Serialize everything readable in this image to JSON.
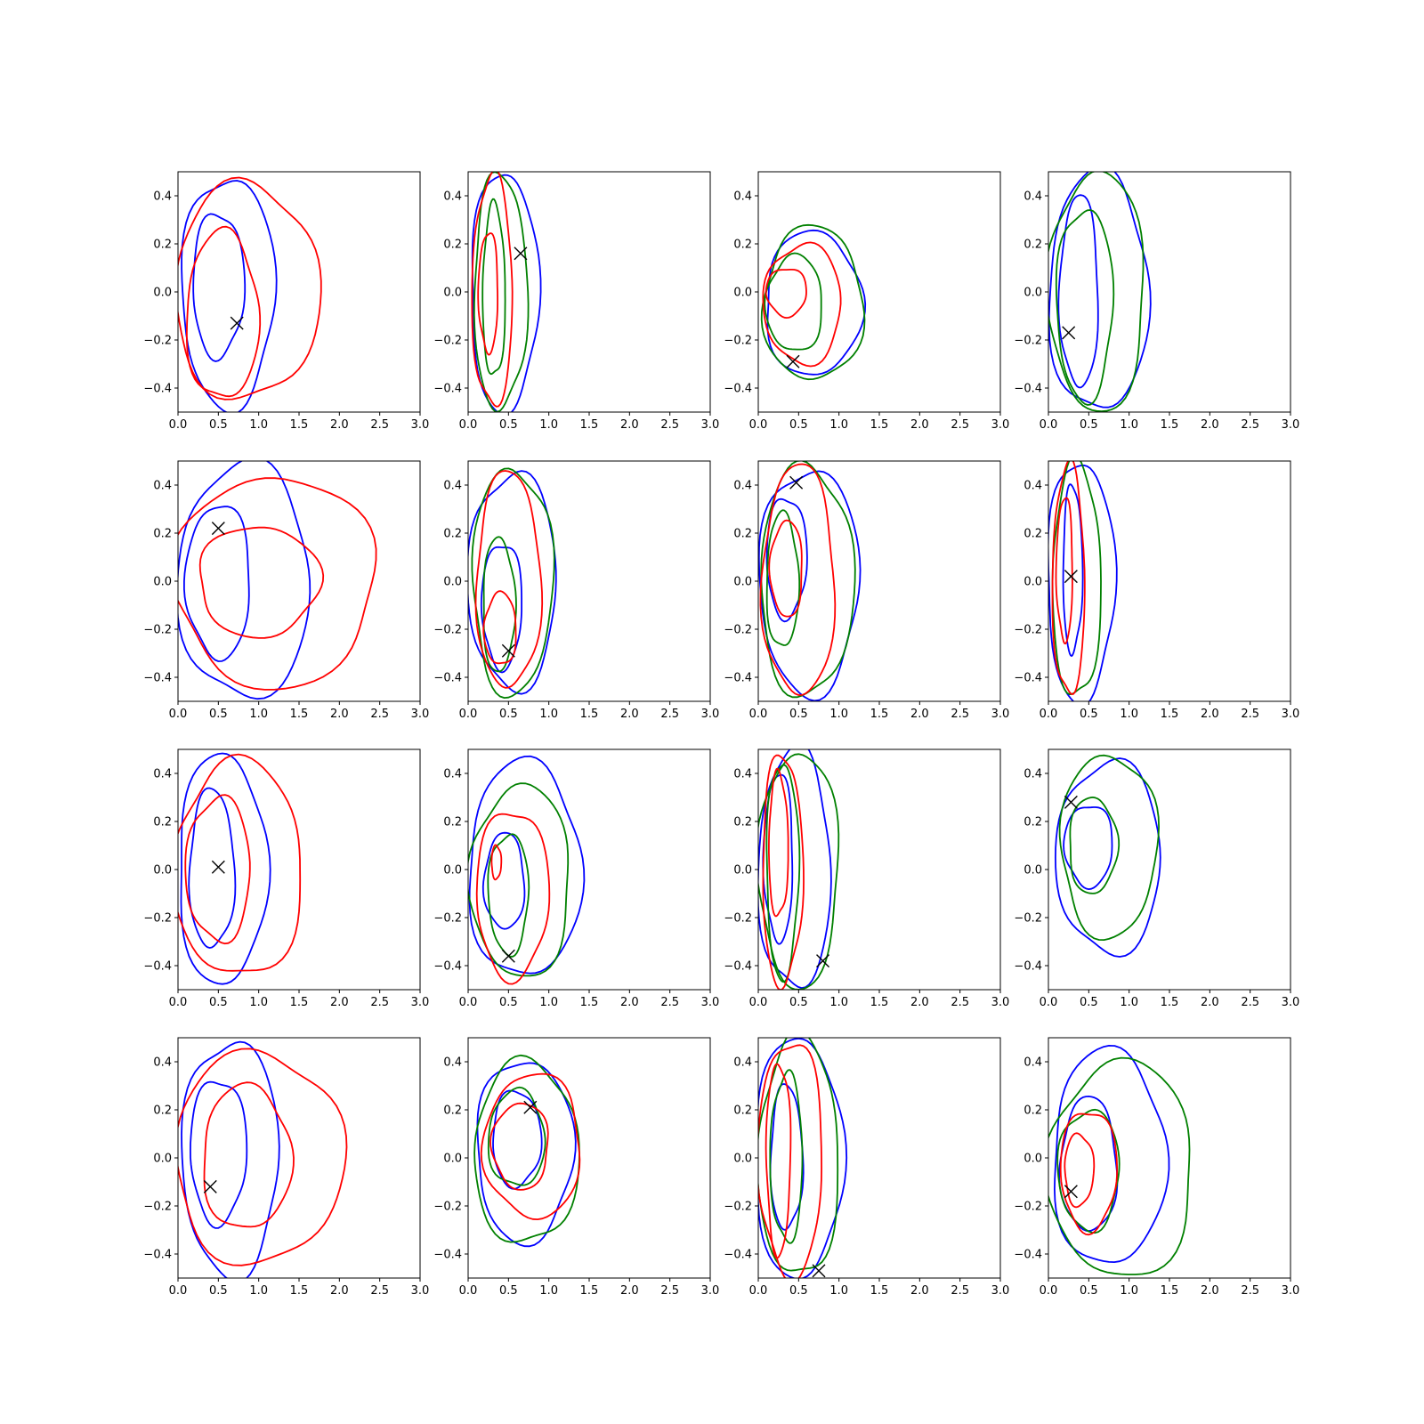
{
  "chart_data": {
    "type": "contour-grid",
    "rows": 4,
    "cols": 4,
    "xlim": [
      0.0,
      3.0
    ],
    "ylim": [
      -0.5,
      0.5
    ],
    "x_ticks": [
      "0.0",
      "0.5",
      "1.0",
      "1.5",
      "2.0",
      "2.5",
      "3.0"
    ],
    "y_ticks": [
      "−0.4",
      "−0.2",
      "0.0",
      "0.2",
      "0.4"
    ],
    "x_tick_values": [
      0,
      0.5,
      1.0,
      1.5,
      2.0,
      2.5,
      3.0
    ],
    "y_tick_values": [
      -0.4,
      -0.2,
      0.0,
      0.2,
      0.4
    ],
    "grid": false,
    "legend": "none",
    "colors": {
      "blue": "#0000ff",
      "red": "#ff0000",
      "green": "#008000",
      "marker": "#000000"
    },
    "panels": [
      {
        "marker": [
          0.73,
          -0.13
        ],
        "contours": [
          {
            "color": "blue",
            "cx": 0.62,
            "cy": 0.0,
            "rx": 0.58,
            "ry": 0.48
          },
          {
            "color": "blue",
            "cx": 0.5,
            "cy": 0.03,
            "rx": 0.32,
            "ry": 0.3
          },
          {
            "color": "red",
            "cx": 0.85,
            "cy": 0.0,
            "rx": 0.9,
            "ry": 0.45
          },
          {
            "color": "red",
            "cx": 0.55,
            "cy": -0.1,
            "rx": 0.45,
            "ry": 0.35
          }
        ]
      },
      {
        "marker": [
          0.65,
          0.16
        ],
        "contours": [
          {
            "color": "blue",
            "cx": 0.45,
            "cy": 0.0,
            "rx": 0.42,
            "ry": 0.5
          },
          {
            "color": "green",
            "cx": 0.4,
            "cy": 0.0,
            "rx": 0.33,
            "ry": 0.49
          },
          {
            "color": "green",
            "cx": 0.32,
            "cy": 0.0,
            "rx": 0.14,
            "ry": 0.36
          },
          {
            "color": "red",
            "cx": 0.3,
            "cy": 0.0,
            "rx": 0.25,
            "ry": 0.48
          },
          {
            "color": "red",
            "cx": 0.25,
            "cy": 0.0,
            "rx": 0.12,
            "ry": 0.25
          }
        ]
      },
      {
        "marker": [
          0.43,
          -0.29
        ],
        "contours": [
          {
            "color": "blue",
            "cx": 0.68,
            "cy": -0.05,
            "rx": 0.6,
            "ry": 0.3
          },
          {
            "color": "green",
            "cx": 0.68,
            "cy": -0.05,
            "rx": 0.62,
            "ry": 0.32
          },
          {
            "color": "green",
            "cx": 0.45,
            "cy": -0.05,
            "rx": 0.35,
            "ry": 0.2
          },
          {
            "color": "red",
            "cx": 0.55,
            "cy": -0.05,
            "rx": 0.48,
            "ry": 0.25
          },
          {
            "color": "red",
            "cx": 0.35,
            "cy": 0.0,
            "rx": 0.25,
            "ry": 0.1
          }
        ]
      },
      {
        "marker": [
          0.25,
          -0.17
        ],
        "contours": [
          {
            "color": "blue",
            "cx": 0.62,
            "cy": 0.0,
            "rx": 0.62,
            "ry": 0.5
          },
          {
            "color": "blue",
            "cx": 0.38,
            "cy": 0.0,
            "rx": 0.24,
            "ry": 0.4
          },
          {
            "color": "green",
            "cx": 0.6,
            "cy": 0.0,
            "rx": 0.6,
            "ry": 0.5
          },
          {
            "color": "green",
            "cx": 0.45,
            "cy": -0.05,
            "rx": 0.35,
            "ry": 0.4
          }
        ]
      },
      {
        "marker": [
          0.5,
          0.22
        ],
        "contours": [
          {
            "color": "blue",
            "cx": 0.82,
            "cy": 0.0,
            "rx": 0.82,
            "ry": 0.49
          },
          {
            "color": "blue",
            "cx": 0.5,
            "cy": 0.0,
            "rx": 0.4,
            "ry": 0.32
          },
          {
            "color": "red",
            "cx": 1.2,
            "cy": 0.0,
            "rx": 1.25,
            "ry": 0.44
          },
          {
            "color": "red",
            "cx": 1.0,
            "cy": 0.0,
            "rx": 0.75,
            "ry": 0.23
          }
        ]
      },
      {
        "marker": [
          0.5,
          -0.29
        ],
        "contours": [
          {
            "color": "blue",
            "cx": 0.55,
            "cy": 0.0,
            "rx": 0.55,
            "ry": 0.45
          },
          {
            "color": "blue",
            "cx": 0.42,
            "cy": -0.1,
            "rx": 0.25,
            "ry": 0.26
          },
          {
            "color": "green",
            "cx": 0.55,
            "cy": 0.0,
            "rx": 0.5,
            "ry": 0.47
          },
          {
            "color": "green",
            "cx": 0.38,
            "cy": -0.1,
            "rx": 0.2,
            "ry": 0.28
          },
          {
            "color": "red",
            "cx": 0.5,
            "cy": 0.0,
            "rx": 0.4,
            "ry": 0.45
          },
          {
            "color": "red",
            "cx": 0.4,
            "cy": -0.2,
            "rx": 0.2,
            "ry": 0.15
          }
        ]
      },
      {
        "marker": [
          0.47,
          0.41
        ],
        "contours": [
          {
            "color": "blue",
            "cx": 0.63,
            "cy": 0.0,
            "rx": 0.62,
            "ry": 0.47
          },
          {
            "color": "blue",
            "cx": 0.35,
            "cy": 0.1,
            "rx": 0.25,
            "ry": 0.25
          },
          {
            "color": "green",
            "cx": 0.6,
            "cy": 0.0,
            "rx": 0.58,
            "ry": 0.48
          },
          {
            "color": "green",
            "cx": 0.3,
            "cy": 0.0,
            "rx": 0.2,
            "ry": 0.28
          },
          {
            "color": "red",
            "cx": 0.5,
            "cy": 0.0,
            "rx": 0.45,
            "ry": 0.48
          },
          {
            "color": "red",
            "cx": 0.35,
            "cy": 0.05,
            "rx": 0.2,
            "ry": 0.2
          }
        ]
      },
      {
        "marker": [
          0.28,
          0.02
        ],
        "contours": [
          {
            "color": "blue",
            "cx": 0.4,
            "cy": 0.0,
            "rx": 0.42,
            "ry": 0.5
          },
          {
            "color": "blue",
            "cx": 0.3,
            "cy": 0.05,
            "rx": 0.12,
            "ry": 0.35
          },
          {
            "color": "green",
            "cx": 0.35,
            "cy": 0.0,
            "rx": 0.3,
            "ry": 0.49
          },
          {
            "color": "red",
            "cx": 0.25,
            "cy": 0.0,
            "rx": 0.2,
            "ry": 0.48
          },
          {
            "color": "red",
            "cx": 0.2,
            "cy": 0.05,
            "rx": 0.1,
            "ry": 0.3
          }
        ]
      },
      {
        "marker": [
          0.5,
          0.01
        ],
        "contours": [
          {
            "color": "blue",
            "cx": 0.55,
            "cy": 0.0,
            "rx": 0.55,
            "ry": 0.48
          },
          {
            "color": "blue",
            "cx": 0.42,
            "cy": 0.0,
            "rx": 0.28,
            "ry": 0.33
          },
          {
            "color": "red",
            "cx": 0.75,
            "cy": 0.0,
            "rx": 0.8,
            "ry": 0.45
          },
          {
            "color": "red",
            "cx": 0.5,
            "cy": 0.0,
            "rx": 0.4,
            "ry": 0.3
          }
        ]
      },
      {
        "marker": [
          0.5,
          -0.36
        ],
        "contours": [
          {
            "color": "blue",
            "cx": 0.7,
            "cy": 0.0,
            "rx": 0.7,
            "ry": 0.45
          },
          {
            "color": "blue",
            "cx": 0.45,
            "cy": -0.05,
            "rx": 0.25,
            "ry": 0.2
          },
          {
            "color": "green",
            "cx": 0.65,
            "cy": -0.05,
            "rx": 0.62,
            "ry": 0.4
          },
          {
            "color": "green",
            "cx": 0.5,
            "cy": -0.1,
            "rx": 0.25,
            "ry": 0.25
          },
          {
            "color": "red",
            "cx": 0.55,
            "cy": -0.1,
            "rx": 0.45,
            "ry": 0.35
          },
          {
            "color": "red",
            "cx": 0.35,
            "cy": 0.03,
            "rx": 0.06,
            "ry": 0.07
          }
        ]
      },
      {
        "marker": [
          0.8,
          -0.38
        ],
        "contours": [
          {
            "color": "blue",
            "cx": 0.45,
            "cy": 0.0,
            "rx": 0.45,
            "ry": 0.5
          },
          {
            "color": "blue",
            "cx": 0.25,
            "cy": 0.05,
            "rx": 0.18,
            "ry": 0.35
          },
          {
            "color": "green",
            "cx": 0.5,
            "cy": 0.0,
            "rx": 0.5,
            "ry": 0.49
          },
          {
            "color": "green",
            "cx": 0.3,
            "cy": 0.0,
            "rx": 0.2,
            "ry": 0.45
          },
          {
            "color": "red",
            "cx": 0.3,
            "cy": 0.0,
            "rx": 0.25,
            "ry": 0.48
          },
          {
            "color": "red",
            "cx": 0.25,
            "cy": 0.1,
            "rx": 0.12,
            "ry": 0.3
          }
        ]
      },
      {
        "marker": [
          0.28,
          0.28
        ],
        "contours": [
          {
            "color": "blue",
            "cx": 0.75,
            "cy": 0.05,
            "rx": 0.65,
            "ry": 0.4
          },
          {
            "color": "blue",
            "cx": 0.5,
            "cy": 0.1,
            "rx": 0.3,
            "ry": 0.17
          },
          {
            "color": "green",
            "cx": 0.75,
            "cy": 0.1,
            "rx": 0.6,
            "ry": 0.38
          },
          {
            "color": "green",
            "cx": 0.55,
            "cy": 0.1,
            "rx": 0.3,
            "ry": 0.2
          }
        ]
      },
      {
        "marker": [
          0.4,
          -0.12
        ],
        "contours": [
          {
            "color": "blue",
            "cx": 0.65,
            "cy": 0.0,
            "rx": 0.6,
            "ry": 0.49
          },
          {
            "color": "blue",
            "cx": 0.5,
            "cy": 0.03,
            "rx": 0.35,
            "ry": 0.3
          },
          {
            "color": "red",
            "cx": 1.0,
            "cy": 0.0,
            "rx": 1.05,
            "ry": 0.44
          },
          {
            "color": "red",
            "cx": 0.85,
            "cy": 0.0,
            "rx": 0.55,
            "ry": 0.3
          }
        ]
      },
      {
        "marker": [
          0.77,
          0.21
        ],
        "contours": [
          {
            "color": "blue",
            "cx": 0.7,
            "cy": 0.03,
            "rx": 0.6,
            "ry": 0.38
          },
          {
            "color": "blue",
            "cx": 0.6,
            "cy": 0.08,
            "rx": 0.3,
            "ry": 0.2
          },
          {
            "color": "green",
            "cx": 0.72,
            "cy": 0.02,
            "rx": 0.65,
            "ry": 0.38
          },
          {
            "color": "green",
            "cx": 0.6,
            "cy": 0.08,
            "rx": 0.35,
            "ry": 0.2
          },
          {
            "color": "red",
            "cx": 0.8,
            "cy": 0.05,
            "rx": 0.6,
            "ry": 0.3
          },
          {
            "color": "red",
            "cx": 0.65,
            "cy": 0.05,
            "rx": 0.35,
            "ry": 0.18
          }
        ]
      },
      {
        "marker": [
          0.75,
          -0.47
        ],
        "contours": [
          {
            "color": "blue",
            "cx": 0.5,
            "cy": 0.0,
            "rx": 0.55,
            "ry": 0.5
          },
          {
            "color": "blue",
            "cx": 0.35,
            "cy": 0.0,
            "rx": 0.2,
            "ry": 0.3
          },
          {
            "color": "green",
            "cx": 0.5,
            "cy": 0.0,
            "rx": 0.5,
            "ry": 0.5
          },
          {
            "color": "green",
            "cx": 0.35,
            "cy": 0.0,
            "rx": 0.2,
            "ry": 0.35
          },
          {
            "color": "red",
            "cx": 0.4,
            "cy": 0.0,
            "rx": 0.4,
            "ry": 0.49
          },
          {
            "color": "red",
            "cx": 0.25,
            "cy": 0.0,
            "rx": 0.15,
            "ry": 0.4
          }
        ]
      },
      {
        "marker": [
          0.28,
          -0.14
        ],
        "contours": [
          {
            "color": "blue",
            "cx": 0.75,
            "cy": 0.0,
            "rx": 0.7,
            "ry": 0.45
          },
          {
            "color": "blue",
            "cx": 0.5,
            "cy": -0.03,
            "rx": 0.35,
            "ry": 0.28
          },
          {
            "color": "green",
            "cx": 0.9,
            "cy": -0.05,
            "rx": 0.9,
            "ry": 0.45
          },
          {
            "color": "green",
            "cx": 0.5,
            "cy": -0.05,
            "rx": 0.38,
            "ry": 0.25
          },
          {
            "color": "red",
            "cx": 0.5,
            "cy": -0.05,
            "rx": 0.35,
            "ry": 0.25
          },
          {
            "color": "red",
            "cx": 0.38,
            "cy": -0.05,
            "rx": 0.18,
            "ry": 0.15
          }
        ]
      }
    ]
  }
}
